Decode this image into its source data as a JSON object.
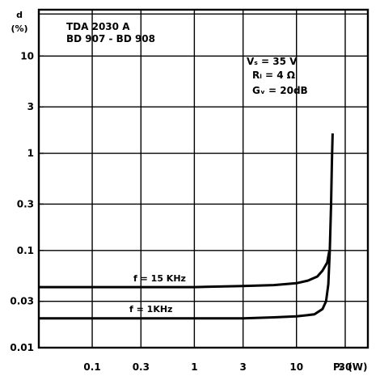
{
  "chart_data": {
    "type": "line",
    "title_lines": [
      "TDA 2030 A",
      "BD 907 - BD 908"
    ],
    "ylabel_lines": [
      "d",
      "(%)"
    ],
    "xlabel": "P₀ (W)",
    "x_scale": "log",
    "y_scale": "log",
    "xlim": [
      0.03,
      50
    ],
    "ylim": [
      0.01,
      30
    ],
    "x_ticks": [
      {
        "value": 0.1,
        "label": "0.1"
      },
      {
        "value": 0.3,
        "label": "0.3"
      },
      {
        "value": 1,
        "label": "1"
      },
      {
        "value": 3,
        "label": "3"
      },
      {
        "value": 10,
        "label": "10"
      },
      {
        "value": 30,
        "label": "30"
      }
    ],
    "y_ticks": [
      {
        "value": 0.01,
        "label": "0.01"
      },
      {
        "value": 0.03,
        "label": "0.03"
      },
      {
        "value": 0.1,
        "label": "0.1"
      },
      {
        "value": 0.3,
        "label": "0.3"
      },
      {
        "value": 1,
        "label": "1"
      },
      {
        "value": 3,
        "label": "3"
      },
      {
        "value": 10,
        "label": "10"
      }
    ],
    "conditions": {
      "line1": "Vₛ = 35 V",
      "line2": "Rₗ = 4 Ω",
      "line3": "Gᵥ = 20dB"
    },
    "series": [
      {
        "name": "f = 15 KHz",
        "x": [
          0.03,
          0.1,
          0.3,
          1,
          3,
          6,
          10,
          13,
          16,
          18,
          20,
          21
        ],
        "y": [
          0.042,
          0.042,
          0.042,
          0.042,
          0.043,
          0.044,
          0.046,
          0.049,
          0.054,
          0.062,
          0.075,
          0.1
        ]
      },
      {
        "name": "f = 1KHz",
        "x": [
          0.03,
          0.1,
          0.3,
          1,
          3,
          6,
          10,
          15,
          18,
          19.5,
          20.5,
          21.2,
          21.8,
          22.2,
          22.6
        ],
        "y": [
          0.02,
          0.02,
          0.02,
          0.02,
          0.02,
          0.0205,
          0.021,
          0.022,
          0.025,
          0.03,
          0.045,
          0.1,
          0.3,
          0.8,
          1.6
        ]
      }
    ]
  }
}
